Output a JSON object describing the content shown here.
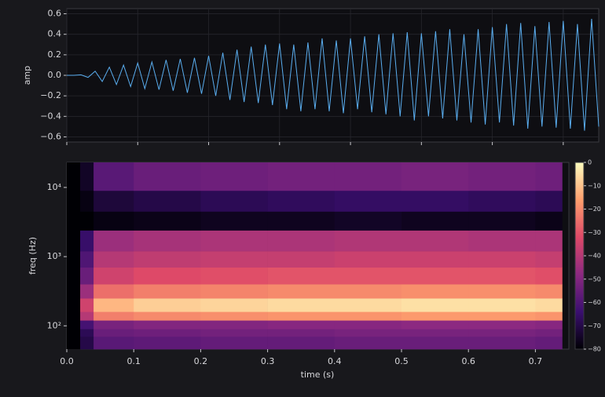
{
  "chart_data": [
    {
      "type": "line",
      "ylabel": "amp",
      "color": "#5aaef0",
      "grid": true,
      "xlim": [
        0,
        0.75
      ],
      "xticks": [
        0,
        0.1,
        0.2,
        0.3,
        0.4,
        0.5,
        0.6,
        0.7
      ],
      "ylim": [
        -0.65,
        0.65
      ],
      "yticks": [
        {
          "value": -0.6,
          "label": "−0.6"
        },
        {
          "value": -0.4,
          "label": "−0.4"
        },
        {
          "value": -0.2,
          "label": "−0.2"
        },
        {
          "value": 0,
          "label": "0.0"
        },
        0.2,
        0.4,
        0.6
      ],
      "x": [
        0,
        0.01,
        0.02,
        0.03,
        0.04,
        0.05,
        0.06,
        0.07,
        0.08,
        0.09,
        0.1,
        0.11,
        0.12,
        0.13,
        0.14,
        0.15,
        0.16,
        0.17,
        0.18,
        0.19,
        0.2,
        0.21,
        0.22,
        0.23,
        0.24,
        0.25,
        0.26,
        0.27,
        0.28,
        0.29,
        0.3,
        0.31,
        0.32,
        0.33,
        0.34,
        0.35,
        0.36,
        0.37,
        0.38,
        0.39,
        0.4,
        0.41,
        0.42,
        0.43,
        0.44,
        0.45,
        0.46,
        0.47,
        0.48,
        0.49,
        0.5,
        0.51,
        0.52,
        0.53,
        0.54,
        0.55,
        0.56,
        0.57,
        0.58,
        0.59,
        0.6,
        0.61,
        0.62,
        0.63,
        0.64,
        0.65,
        0.66,
        0.67,
        0.68,
        0.69,
        0.7,
        0.71,
        0.72,
        0.73,
        0.74,
        0.75
      ],
      "values": [
        0,
        0,
        0.005,
        -0.02,
        0.04,
        -0.06,
        0.08,
        -0.09,
        0.1,
        -0.11,
        0.12,
        -0.13,
        0.13,
        -0.14,
        0.15,
        -0.15,
        0.16,
        -0.17,
        0.17,
        -0.18,
        0.19,
        -0.2,
        0.22,
        -0.24,
        0.25,
        -0.26,
        0.28,
        -0.27,
        0.3,
        -0.29,
        0.31,
        -0.33,
        0.3,
        -0.35,
        0.32,
        -0.33,
        0.36,
        -0.35,
        0.34,
        -0.37,
        0.36,
        -0.33,
        0.38,
        -0.36,
        0.4,
        -0.38,
        0.41,
        -0.4,
        0.42,
        -0.44,
        0.41,
        -0.4,
        0.43,
        -0.42,
        0.45,
        -0.44,
        0.4,
        -0.46,
        0.45,
        -0.48,
        0.47,
        -0.46,
        0.5,
        -0.49,
        0.51,
        -0.52,
        0.48,
        -0.5,
        0.52,
        -0.51,
        0.53,
        -0.52,
        0.5,
        -0.54,
        0.55,
        -0.5
      ]
    },
    {
      "type": "heatmap",
      "xlabel": "time (s)",
      "ylabel": "freq (Hz)",
      "log_y": true,
      "xlim": [
        0,
        0.75
      ],
      "xticks": [
        {
          "value": 0,
          "label": "0.0"
        },
        0.1,
        0.2,
        0.3,
        0.4,
        0.5,
        0.6,
        0.7
      ],
      "ylim": [
        46,
        23000
      ],
      "yticks": [
        {
          "value": 100,
          "label": "10²"
        },
        {
          "value": 1000,
          "label": "10³"
        },
        {
          "value": 10000,
          "label": "10⁴"
        }
      ],
      "x_edges": [
        0,
        0.02,
        0.04,
        0.1,
        0.2,
        0.3,
        0.4,
        0.5,
        0.6,
        0.7,
        0.74
      ],
      "y_edges": [
        46,
        70,
        90,
        120,
        160,
        250,
        400,
        700,
        1200,
        2400,
        4500,
        9000,
        23000
      ],
      "values": [
        [
          -80,
          -70,
          -58,
          -57,
          -56,
          -56,
          -55,
          -55,
          -55,
          -56
        ],
        [
          -80,
          -68,
          -55,
          -54,
          -53,
          -53,
          -52,
          -52,
          -52,
          -53
        ],
        [
          -80,
          -62,
          -52,
          -50,
          -50,
          -49,
          -49,
          -48,
          -48,
          -49
        ],
        [
          -80,
          -40,
          -22,
          -20,
          -19,
          -18,
          -18,
          -17,
          -17,
          -18
        ],
        [
          -80,
          -35,
          -12,
          -8,
          -7,
          -6,
          -6,
          -5,
          -5,
          -6
        ],
        [
          -80,
          -45,
          -25,
          -22,
          -21,
          -20,
          -20,
          -19,
          -19,
          -20
        ],
        [
          -80,
          -55,
          -35,
          -32,
          -31,
          -30,
          -30,
          -30,
          -30,
          -31
        ],
        [
          -80,
          -60,
          -40,
          -38,
          -37,
          -37,
          -36,
          -36,
          -36,
          -37
        ],
        [
          -80,
          -65,
          -45,
          -43,
          -42,
          -42,
          -41,
          -41,
          -42,
          -42
        ],
        [
          -80,
          -80,
          -78,
          -77,
          -76,
          -76,
          -75,
          -76,
          -76,
          -77
        ],
        [
          -80,
          -78,
          -72,
          -70,
          -68,
          -67,
          -66,
          -66,
          -67,
          -68
        ],
        [
          -80,
          -75,
          -58,
          -55,
          -54,
          -53,
          -53,
          -52,
          -53,
          -54
        ]
      ],
      "colormap": [
        "#000004",
        "#3b0f70",
        "#8c2981",
        "#de4968",
        "#fe9f6d",
        "#fcfdbf"
      ],
      "clim": [
        -80,
        0
      ],
      "cticks": [
        {
          "value": -80,
          "label": "−80"
        },
        {
          "value": -70,
          "label": "−70"
        },
        {
          "value": -60,
          "label": "−60"
        },
        {
          "value": -50,
          "label": "−50"
        },
        {
          "value": -40,
          "label": "−40"
        },
        {
          "value": -30,
          "label": "−30"
        },
        {
          "value": -20,
          "label": "−20"
        },
        {
          "value": -10,
          "label": "−10"
        },
        0
      ]
    }
  ]
}
